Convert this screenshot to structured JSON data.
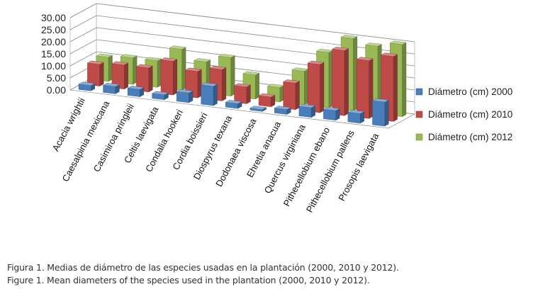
{
  "chart_data": {
    "type": "bar",
    "style": "3d-clustered-column",
    "categories": [
      "Acacia wrightii",
      "Caesalpinia mexicana",
      "Casimiroa pringleii",
      "Celtis laevigata",
      "Condalia hookeri",
      "Cordia boissieri",
      "Diospyrus texana",
      "Dodonaea viscosa",
      "Ehretia anacua",
      "Quercus virginiana",
      "Pithecellobium ebano",
      "Pithecellobium pallens",
      "Prosopis laevigata"
    ],
    "series": [
      {
        "name": "Diámetro (cm) 2000",
        "color": "#4a7ebb",
        "values": [
          2.2,
          3.0,
          3.0,
          2.0,
          4.0,
          8.0,
          2.0,
          0.8,
          2.0,
          4.0,
          4.0,
          4.0,
          10.0
        ]
      },
      {
        "name": "Diámetro (cm) 2010",
        "color": "#be4b48",
        "values": [
          9.0,
          10.0,
          10.0,
          14.0,
          11.0,
          13.0,
          7.0,
          4.0,
          11.0,
          20.0,
          27.0,
          24.0,
          27.0
        ]
      },
      {
        "name": "Diámetro (cm) 2012",
        "color": "#98b954",
        "values": [
          10.0,
          11.0,
          11.0,
          17.0,
          13.0,
          16.0,
          10.0,
          6.0,
          14.0,
          23.0,
          30.0,
          28.0,
          30.0
        ]
      }
    ],
    "yticks": [
      "0.00",
      "5.00",
      "10.00",
      "15.00",
      "20.00",
      "25.00",
      "30.00"
    ],
    "ylim": [
      0,
      30
    ],
    "legend": "right",
    "grid": true
  },
  "caption": {
    "es": "Figura 1. Medias de diámetro de las especies usadas en la plantación (2000, 2010 y 2012).",
    "en": "Figure 1. Mean diameters of the species used in the plantation (2000, 2010 y 2012)."
  }
}
